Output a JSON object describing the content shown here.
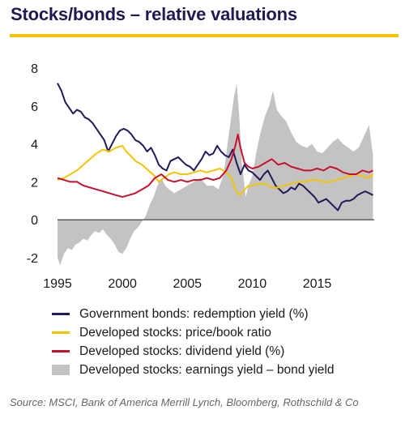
{
  "title": "Stocks/bonds – relative valuations",
  "colors": {
    "accent": "#f2c400",
    "bonds": "#1f1a5a",
    "pb": "#f5c400",
    "dividend": "#c8102e",
    "gap": "#c3c3c3"
  },
  "source": "Source: MSCI, Bank of America Merrill Lynch, Bloomberg, Rothschild & Co",
  "chart_data": {
    "type": "line",
    "xlim": [
      1995,
      2019.4
    ],
    "ylim": [
      -2,
      8
    ],
    "x_ticks": [
      "1995",
      "2000",
      "2005",
      "2010",
      "2015"
    ],
    "y_ticks": [
      "8",
      "6",
      "4",
      "2",
      "0",
      "-2"
    ],
    "grid": false,
    "series": [
      {
        "name": "Government bonds: redemption yield (%)",
        "style": "line",
        "color_key": "bonds",
        "points": [
          [
            1995,
            7.2
          ],
          [
            1995.3,
            6.8
          ],
          [
            1995.6,
            6.2
          ],
          [
            1995.9,
            5.9
          ],
          [
            1996.2,
            5.6
          ],
          [
            1996.5,
            5.8
          ],
          [
            1996.8,
            5.7
          ],
          [
            1997.1,
            5.4
          ],
          [
            1997.4,
            5.3
          ],
          [
            1997.7,
            5.1
          ],
          [
            1998,
            4.8
          ],
          [
            1998.3,
            4.5
          ],
          [
            1998.6,
            4.2
          ],
          [
            1998.9,
            3.6
          ],
          [
            1999.2,
            4.0
          ],
          [
            1999.5,
            4.4
          ],
          [
            1999.8,
            4.7
          ],
          [
            2000.1,
            4.8
          ],
          [
            2000.4,
            4.7
          ],
          [
            2000.7,
            4.5
          ],
          [
            2001,
            4.2
          ],
          [
            2001.3,
            4.1
          ],
          [
            2001.6,
            3.9
          ],
          [
            2001.9,
            3.6
          ],
          [
            2002.2,
            3.8
          ],
          [
            2002.5,
            3.4
          ],
          [
            2002.8,
            2.9
          ],
          [
            2003.1,
            2.7
          ],
          [
            2003.4,
            2.6
          ],
          [
            2003.7,
            3.1
          ],
          [
            2004,
            3.2
          ],
          [
            2004.3,
            3.3
          ],
          [
            2004.6,
            3.1
          ],
          [
            2004.9,
            2.9
          ],
          [
            2005.2,
            2.8
          ],
          [
            2005.5,
            2.6
          ],
          [
            2005.8,
            2.9
          ],
          [
            2006.1,
            3.2
          ],
          [
            2006.4,
            3.6
          ],
          [
            2006.7,
            3.4
          ],
          [
            2007,
            3.5
          ],
          [
            2007.3,
            3.9
          ],
          [
            2007.6,
            3.6
          ],
          [
            2007.9,
            3.4
          ],
          [
            2008.2,
            3.3
          ],
          [
            2008.5,
            3.7
          ],
          [
            2008.8,
            3.0
          ],
          [
            2009.1,
            2.4
          ],
          [
            2009.4,
            2.9
          ],
          [
            2009.7,
            2.6
          ],
          [
            2010,
            2.5
          ],
          [
            2010.3,
            2.3
          ],
          [
            2010.6,
            2.1
          ],
          [
            2010.9,
            2.4
          ],
          [
            2011.2,
            2.6
          ],
          [
            2011.5,
            2.2
          ],
          [
            2011.8,
            1.8
          ],
          [
            2012.1,
            1.6
          ],
          [
            2012.4,
            1.4
          ],
          [
            2012.7,
            1.5
          ],
          [
            2013,
            1.7
          ],
          [
            2013.3,
            1.6
          ],
          [
            2013.6,
            1.9
          ],
          [
            2013.9,
            1.8
          ],
          [
            2014.2,
            1.6
          ],
          [
            2014.5,
            1.4
          ],
          [
            2014.8,
            1.2
          ],
          [
            2015.1,
            0.9
          ],
          [
            2015.4,
            1.0
          ],
          [
            2015.7,
            1.1
          ],
          [
            2016,
            0.9
          ],
          [
            2016.3,
            0.7
          ],
          [
            2016.6,
            0.5
          ],
          [
            2016.9,
            0.9
          ],
          [
            2017.2,
            1.0
          ],
          [
            2017.5,
            1.0
          ],
          [
            2017.8,
            1.1
          ],
          [
            2018.1,
            1.3
          ],
          [
            2018.4,
            1.4
          ],
          [
            2018.7,
            1.5
          ],
          [
            2019,
            1.4
          ],
          [
            2019.3,
            1.3
          ]
        ]
      },
      {
        "name": "Developed stocks: price/book ratio",
        "style": "line",
        "color_key": "pb",
        "points": [
          [
            1995,
            2.1
          ],
          [
            1995.5,
            2.2
          ],
          [
            1996,
            2.4
          ],
          [
            1996.5,
            2.6
          ],
          [
            1997,
            2.9
          ],
          [
            1997.5,
            3.2
          ],
          [
            1998,
            3.5
          ],
          [
            1998.5,
            3.7
          ],
          [
            1999,
            3.6
          ],
          [
            1999.5,
            3.8
          ],
          [
            2000,
            3.9
          ],
          [
            2000.3,
            3.6
          ],
          [
            2000.6,
            3.4
          ],
          [
            2001,
            3.1
          ],
          [
            2001.5,
            2.9
          ],
          [
            2002,
            2.6
          ],
          [
            2002.5,
            2.3
          ],
          [
            2002.8,
            2.0
          ],
          [
            2003.2,
            2.2
          ],
          [
            2003.6,
            2.4
          ],
          [
            2004,
            2.5
          ],
          [
            2004.5,
            2.4
          ],
          [
            2005,
            2.4
          ],
          [
            2005.5,
            2.5
          ],
          [
            2006,
            2.6
          ],
          [
            2006.5,
            2.5
          ],
          [
            2007,
            2.6
          ],
          [
            2007.5,
            2.7
          ],
          [
            2008,
            2.5
          ],
          [
            2008.4,
            2.2
          ],
          [
            2008.7,
            1.6
          ],
          [
            2009,
            1.3
          ],
          [
            2009.3,
            1.5
          ],
          [
            2009.7,
            1.8
          ],
          [
            2010,
            1.8
          ],
          [
            2010.5,
            1.9
          ],
          [
            2011,
            1.9
          ],
          [
            2011.5,
            1.7
          ],
          [
            2012,
            1.7
          ],
          [
            2012.5,
            1.8
          ],
          [
            2013,
            1.9
          ],
          [
            2013.5,
            2.0
          ],
          [
            2014,
            2.0
          ],
          [
            2014.5,
            2.1
          ],
          [
            2015,
            2.1
          ],
          [
            2015.5,
            2.0
          ],
          [
            2016,
            2.0
          ],
          [
            2016.5,
            2.1
          ],
          [
            2017,
            2.2
          ],
          [
            2017.5,
            2.3
          ],
          [
            2018,
            2.4
          ],
          [
            2018.5,
            2.3
          ],
          [
            2019,
            2.2
          ],
          [
            2019.3,
            2.4
          ]
        ]
      },
      {
        "name": "Developed stocks: dividend yield (%)",
        "style": "line",
        "color_key": "dividend",
        "points": [
          [
            1995,
            2.2
          ],
          [
            1995.5,
            2.1
          ],
          [
            1996,
            2.0
          ],
          [
            1996.5,
            2.0
          ],
          [
            1997,
            1.8
          ],
          [
            1997.5,
            1.7
          ],
          [
            1998,
            1.6
          ],
          [
            1998.5,
            1.5
          ],
          [
            1999,
            1.4
          ],
          [
            1999.5,
            1.3
          ],
          [
            2000,
            1.2
          ],
          [
            2000.5,
            1.3
          ],
          [
            2001,
            1.4
          ],
          [
            2001.5,
            1.6
          ],
          [
            2002,
            1.8
          ],
          [
            2002.5,
            2.2
          ],
          [
            2003,
            2.4
          ],
          [
            2003.5,
            2.1
          ],
          [
            2004,
            2.0
          ],
          [
            2004.5,
            2.1
          ],
          [
            2005,
            2.0
          ],
          [
            2005.5,
            2.1
          ],
          [
            2006,
            2.1
          ],
          [
            2006.5,
            2.2
          ],
          [
            2007,
            2.1
          ],
          [
            2007.5,
            2.2
          ],
          [
            2008,
            2.6
          ],
          [
            2008.4,
            3.2
          ],
          [
            2008.7,
            3.9
          ],
          [
            2008.9,
            4.5
          ],
          [
            2009.1,
            3.8
          ],
          [
            2009.4,
            3.0
          ],
          [
            2009.7,
            2.8
          ],
          [
            2010,
            2.7
          ],
          [
            2010.5,
            2.8
          ],
          [
            2011,
            3.0
          ],
          [
            2011.5,
            3.2
          ],
          [
            2012,
            2.9
          ],
          [
            2012.5,
            3.0
          ],
          [
            2013,
            2.8
          ],
          [
            2013.5,
            2.7
          ],
          [
            2014,
            2.6
          ],
          [
            2014.5,
            2.6
          ],
          [
            2015,
            2.7
          ],
          [
            2015.5,
            2.6
          ],
          [
            2016,
            2.8
          ],
          [
            2016.5,
            2.7
          ],
          [
            2017,
            2.5
          ],
          [
            2017.5,
            2.4
          ],
          [
            2018,
            2.4
          ],
          [
            2018.5,
            2.6
          ],
          [
            2019,
            2.5
          ],
          [
            2019.3,
            2.6
          ]
        ]
      },
      {
        "name": "Developed stocks: earnings yield – bond yield",
        "style": "area",
        "color_key": "gap",
        "points": [
          [
            1995,
            -2.0
          ],
          [
            1995.2,
            -2.4
          ],
          [
            1995.5,
            -1.8
          ],
          [
            1995.8,
            -1.5
          ],
          [
            1996.1,
            -1.6
          ],
          [
            1996.4,
            -1.3
          ],
          [
            1996.7,
            -1.2
          ],
          [
            1997,
            -1.0
          ],
          [
            1997.3,
            -1.1
          ],
          [
            1997.6,
            -0.8
          ],
          [
            1997.9,
            -0.6
          ],
          [
            1998.2,
            -0.7
          ],
          [
            1998.5,
            -0.5
          ],
          [
            1998.8,
            -0.8
          ],
          [
            1999.1,
            -1.0
          ],
          [
            1999.4,
            -1.3
          ],
          [
            1999.7,
            -1.7
          ],
          [
            2000,
            -1.8
          ],
          [
            2000.3,
            -1.5
          ],
          [
            2000.6,
            -1.0
          ],
          [
            2000.9,
            -0.6
          ],
          [
            2001.2,
            -0.4
          ],
          [
            2001.5,
            -0.1
          ],
          [
            2001.8,
            0.2
          ],
          [
            2002.1,
            0.8
          ],
          [
            2002.4,
            1.2
          ],
          [
            2002.7,
            1.8
          ],
          [
            2003,
            2.2
          ],
          [
            2003.3,
            1.8
          ],
          [
            2003.6,
            1.6
          ],
          [
            2004,
            1.4
          ],
          [
            2004.5,
            1.6
          ],
          [
            2005,
            1.8
          ],
          [
            2005.5,
            2.0
          ],
          [
            2006,
            2.2
          ],
          [
            2006.5,
            1.8
          ],
          [
            2007,
            1.8
          ],
          [
            2007.4,
            1.6
          ],
          [
            2007.8,
            2.4
          ],
          [
            2008.1,
            4.0
          ],
          [
            2008.4,
            5.5
          ],
          [
            2008.6,
            6.5
          ],
          [
            2008.8,
            7.2
          ],
          [
            2009,
            5.5
          ],
          [
            2009.2,
            3.0
          ],
          [
            2009.5,
            1.2
          ],
          [
            2009.7,
            1.8
          ],
          [
            2010,
            2.3
          ],
          [
            2010.3,
            3.5
          ],
          [
            2010.6,
            4.5
          ],
          [
            2011,
            5.5
          ],
          [
            2011.3,
            6.0
          ],
          [
            2011.6,
            6.8
          ],
          [
            2011.9,
            5.8
          ],
          [
            2012.2,
            5.5
          ],
          [
            2012.6,
            5.2
          ],
          [
            2013,
            4.6
          ],
          [
            2013.4,
            4.1
          ],
          [
            2013.8,
            3.9
          ],
          [
            2014.2,
            3.8
          ],
          [
            2014.6,
            4.0
          ],
          [
            2015,
            3.6
          ],
          [
            2015.4,
            3.5
          ],
          [
            2015.8,
            3.8
          ],
          [
            2016.2,
            4.1
          ],
          [
            2016.6,
            4.3
          ],
          [
            2017,
            4.0
          ],
          [
            2017.4,
            3.8
          ],
          [
            2017.8,
            3.6
          ],
          [
            2018.2,
            3.8
          ],
          [
            2018.6,
            4.4
          ],
          [
            2019,
            5.0
          ],
          [
            2019.3,
            3.4
          ]
        ]
      }
    ]
  }
}
